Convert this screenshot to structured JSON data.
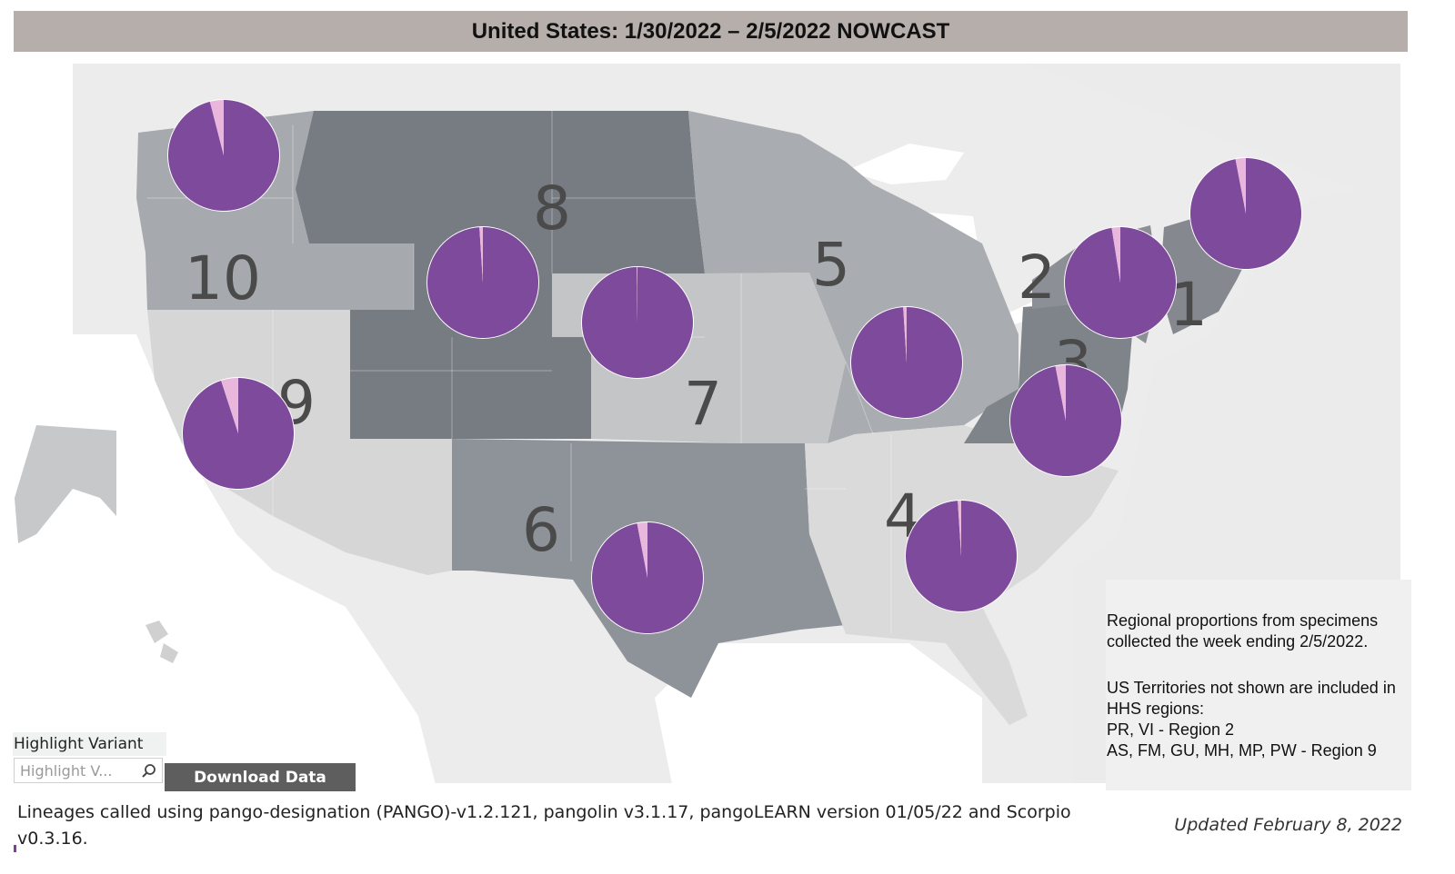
{
  "title": "United States: 1/30/2022 – 2/5/2022 NOWCAST",
  "colors": {
    "variant_main": "#7e4a9c",
    "variant_minor": "#e9b7dc",
    "ocean": "#ffffff",
    "land": "#e6e6e6",
    "region_1_2_3": "#7f838a",
    "region_4": "#dadada",
    "region_5": "#a9acb0",
    "region_6": "#8e939a",
    "region_7": "#c4c5c7",
    "region_8": "#777b82",
    "region_9": "#d6d6d6",
    "region_10": "#a6a9ad"
  },
  "regions": [
    {
      "id": "1",
      "label": "1",
      "main_share": 0.97,
      "minor_share": 0.03
    },
    {
      "id": "2",
      "label": "2",
      "main_share": 0.975,
      "minor_share": 0.025
    },
    {
      "id": "3",
      "label": "3",
      "main_share": 0.97,
      "minor_share": 0.03
    },
    {
      "id": "4",
      "label": "4",
      "main_share": 0.99,
      "minor_share": 0.01
    },
    {
      "id": "5",
      "label": "5",
      "main_share": 0.99,
      "minor_share": 0.01
    },
    {
      "id": "6",
      "label": "6",
      "main_share": 0.97,
      "minor_share": 0.03
    },
    {
      "id": "7",
      "label": "7",
      "main_share": 0.998,
      "minor_share": 0.002
    },
    {
      "id": "8",
      "label": "8",
      "main_share": 0.99,
      "minor_share": 0.01
    },
    {
      "id": "9",
      "label": "9",
      "main_share": 0.95,
      "minor_share": 0.05
    },
    {
      "id": "10",
      "label": "10",
      "main_share": 0.96,
      "minor_share": 0.04
    }
  ],
  "info": {
    "line1": "Regional proportions from specimens",
    "line2": "collected the week ending 2/5/2022.",
    "line3": "US Territories not shown are included in",
    "line4": "HHS regions:",
    "line5": "PR, VI - Region 2",
    "line6": "AS, FM, GU, MH, MP, PW - Region 9"
  },
  "controls": {
    "highlight_label": "Highlight Variant",
    "search_placeholder": "Highlight V...",
    "search_icon": "search-icon",
    "download_label": "Download Data"
  },
  "footnote": "Lineages called using pango-designation (PANGO)-v1.2.121, pangolin v3.1.17, pangoLEARN version 01/05/22 and Scorpio v0.3.16.",
  "updated": "Updated February 8, 2022"
}
